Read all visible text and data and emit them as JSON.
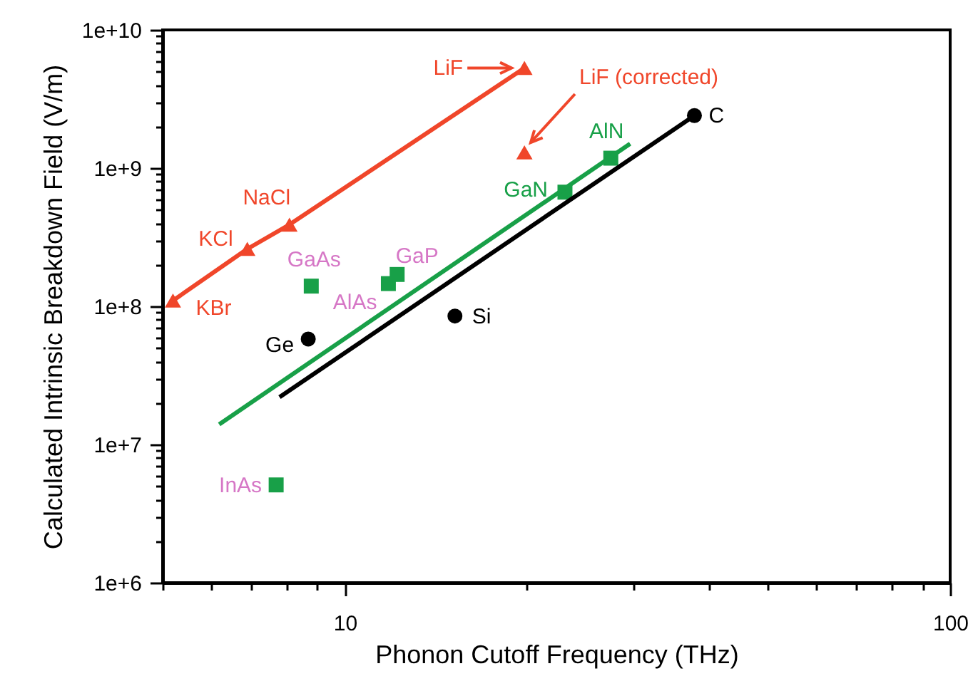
{
  "chart_data": {
    "type": "scatter",
    "xlabel": "Phonon Cutoff Frequency (THz)",
    "ylabel": "Calculated Intrinsic Breakdown Field (V/m)",
    "log": "xy",
    "grid": false,
    "xlim": [
      5,
      100
    ],
    "ylim": [
      1000000.0,
      10000000000.0
    ],
    "xticks": [
      {
        "value": 5,
        "label": null
      },
      {
        "value": 6,
        "label": null
      },
      {
        "value": 7,
        "label": null
      },
      {
        "value": 8,
        "label": null
      },
      {
        "value": 9,
        "label": null
      },
      10,
      {
        "value": 20,
        "label": null
      },
      {
        "value": 30,
        "label": null
      },
      {
        "value": 40,
        "label": null
      },
      {
        "value": 50,
        "label": null
      },
      {
        "value": 60,
        "label": null
      },
      {
        "value": 70,
        "label": null
      },
      {
        "value": 80,
        "label": null
      },
      {
        "value": 90,
        "label": null
      },
      100
    ],
    "yticks": [
      {
        "value": 1000000.0,
        "label": "1e+6"
      },
      {
        "value": 2000000.0,
        "label": null
      },
      {
        "value": 3000000.0,
        "label": null
      },
      {
        "value": 4000000.0,
        "label": null
      },
      {
        "value": 5000000.0,
        "label": null
      },
      {
        "value": 6000000.0,
        "label": null
      },
      {
        "value": 7000000.0,
        "label": null
      },
      {
        "value": 8000000.0,
        "label": null
      },
      {
        "value": 9000000.0,
        "label": null
      },
      {
        "value": 10000000.0,
        "label": "1e+7"
      },
      {
        "value": 20000000.0,
        "label": null
      },
      {
        "value": 30000000.0,
        "label": null
      },
      {
        "value": 40000000.0,
        "label": null
      },
      {
        "value": 50000000.0,
        "label": null
      },
      {
        "value": 60000000.0,
        "label": null
      },
      {
        "value": 70000000.0,
        "label": null
      },
      {
        "value": 80000000.0,
        "label": null
      },
      {
        "value": 90000000.0,
        "label": null
      },
      {
        "value": 100000000.0,
        "label": "1e+8"
      },
      {
        "value": 200000000.0,
        "label": null
      },
      {
        "value": 300000000.0,
        "label": null
      },
      {
        "value": 400000000.0,
        "label": null
      },
      {
        "value": 500000000.0,
        "label": null
      },
      {
        "value": 600000000.0,
        "label": null
      },
      {
        "value": 700000000.0,
        "label": null
      },
      {
        "value": 800000000.0,
        "label": null
      },
      {
        "value": 900000000.0,
        "label": null
      },
      {
        "value": 1000000000.0,
        "label": "1e+9"
      },
      {
        "value": 2000000000.0,
        "label": null
      },
      {
        "value": 3000000000.0,
        "label": null
      },
      {
        "value": 4000000000.0,
        "label": null
      },
      {
        "value": 5000000000.0,
        "label": null
      },
      {
        "value": 6000000000.0,
        "label": null
      },
      {
        "value": 7000000000.0,
        "label": null
      },
      {
        "value": 8000000000.0,
        "label": null
      },
      {
        "value": 9000000000.0,
        "label": null
      },
      {
        "value": 10000000000.0,
        "label": "1e+10"
      }
    ],
    "series": [
      {
        "type": "line",
        "color": "#f0462a",
        "marker": "triangle",
        "x": [
          5.2,
          6.9,
          8.1,
          19.8
        ],
        "values": [
          110000000.0,
          260000000.0,
          390000000.0,
          5300000000.0
        ]
      },
      {
        "type": "scatter",
        "color": "#f0462a",
        "marker": "triangle",
        "x": [
          19.8
        ],
        "values": [
          1300000000.0
        ]
      },
      {
        "type": "scatter",
        "color": "#18a048",
        "marker": "square",
        "x": [
          7.7,
          8.8,
          11.8,
          12.2,
          23.1,
          27.5
        ],
        "values": [
          5100000.0,
          140000000.0,
          146000000.0,
          170000000.0,
          670000000.0,
          1180000000.0
        ]
      },
      {
        "type": "line",
        "color": "#18a048",
        "marker": "none",
        "x": [
          6.2,
          29.6
        ],
        "values": [
          14000000.0,
          1500000000.0
        ]
      },
      {
        "type": "scatter",
        "color": "#000000",
        "marker": "circle",
        "x": [
          8.7,
          15.2,
          37.8
        ],
        "values": [
          58000000.0,
          85000000.0,
          2400000000.0
        ]
      },
      {
        "type": "line",
        "color": "#000000",
        "marker": "none",
        "x": [
          7.8,
          37.8
        ],
        "values": [
          22000000.0,
          2400000000.0
        ]
      }
    ],
    "annotations": [
      {
        "text": "LiF",
        "x": 19.8,
        "y": 5300000000.0
      },
      "LiF (corrected)",
      {
        "text": "NaCl",
        "x": 8.1,
        "y": 390000000.0
      },
      {
        "text": "KCl",
        "x": 6.9,
        "y": 260000000.0
      },
      {
        "text": "KBr",
        "x": 5.2,
        "y": 110000000.0
      },
      {
        "text": "GaAs",
        "x": 8.8,
        "y": 140000000.0
      },
      {
        "text": "AlAs",
        "x": 11.8,
        "y": 146000000.0
      },
      {
        "text": "GaP",
        "x": 12.2,
        "y": 170000000.0
      },
      {
        "text": "InAs",
        "x": 7.7,
        "y": 5100000.0
      },
      {
        "text": "GaN",
        "x": 23.1,
        "y": 670000000.0
      },
      {
        "text": "AlN",
        "x": 27.5,
        "y": 1180000000.0
      },
      {
        "text": "Ge",
        "x": 8.7,
        "y": 58000000.0
      },
      {
        "text": "Si",
        "x": 15.2,
        "y": 85000000.0
      },
      {
        "text": "C",
        "x": 37.8,
        "y": 2400000000.0
      }
    ]
  }
}
